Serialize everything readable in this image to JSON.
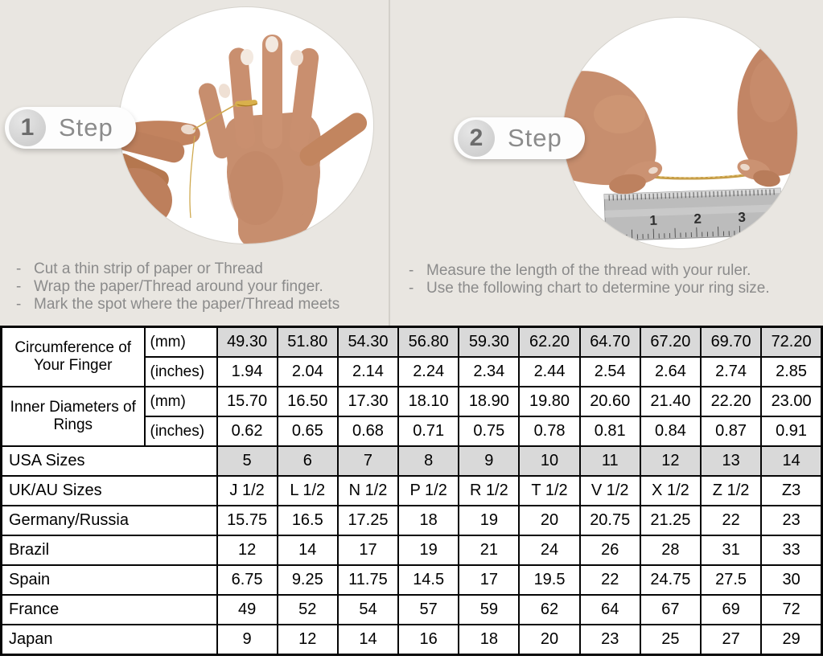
{
  "steps": [
    {
      "number": "1",
      "label": "Step",
      "bullet": "-",
      "instructions": [
        "Cut a thin strip of paper or Thread",
        "Wrap the paper/Thread around your finger.",
        "Mark the spot where the paper/Thread meets"
      ]
    },
    {
      "number": "2",
      "label": "Step",
      "bullet": "-",
      "instructions": [
        "Measure the length of the thread with your ruler.",
        "Use the following chart to determine your ring size."
      ]
    }
  ],
  "photos": {
    "left_photo": "hand-with-thread-around-finger",
    "right_photo": "hands-measuring-thread-with-ruler",
    "ruler_numbers": [
      "1",
      "2",
      "3"
    ]
  },
  "colors": {
    "top_background": "#e9e6e1",
    "shaded_cell": "#d9d9d9",
    "table_border": "#050505",
    "instruction_text": "#8b8b8b",
    "thread_gold": "#c59c46",
    "skin_tone": "#c78e6e"
  },
  "table": {
    "rows": [
      {
        "group_label": "Circumference of Your Finger",
        "group_rowspan": 2,
        "unit": "(mm)",
        "shaded": true,
        "values": [
          "49.30",
          "51.80",
          "54.30",
          "56.80",
          "59.30",
          "62.20",
          "64.70",
          "67.20",
          "69.70",
          "72.20"
        ]
      },
      {
        "unit": "(inches)",
        "shaded": false,
        "values": [
          "1.94",
          "2.04",
          "2.14",
          "2.24",
          "2.34",
          "2.44",
          "2.54",
          "2.64",
          "2.74",
          "2.85"
        ]
      },
      {
        "group_label": "Inner Diameters of Rings",
        "group_rowspan": 2,
        "unit": "(mm)",
        "shaded": false,
        "values": [
          "15.70",
          "16.50",
          "17.30",
          "18.10",
          "18.90",
          "19.80",
          "20.60",
          "21.40",
          "22.20",
          "23.00"
        ]
      },
      {
        "unit": "(inches)",
        "shaded": false,
        "values": [
          "0.62",
          "0.65",
          "0.68",
          "0.71",
          "0.75",
          "0.78",
          "0.81",
          "0.84",
          "0.87",
          "0.91"
        ]
      },
      {
        "label": "USA Sizes",
        "shaded": true,
        "values": [
          "5",
          "6",
          "7",
          "8",
          "9",
          "10",
          "11",
          "12",
          "13",
          "14"
        ]
      },
      {
        "label": "UK/AU Sizes",
        "shaded": false,
        "values": [
          "J 1/2",
          "L 1/2",
          "N 1/2",
          "P 1/2",
          "R 1/2",
          "T 1/2",
          "V 1/2",
          "X 1/2",
          "Z 1/2",
          "Z3"
        ]
      },
      {
        "label": "Germany/Russia",
        "shaded": false,
        "values": [
          "15.75",
          "16.5",
          "17.25",
          "18",
          "19",
          "20",
          "20.75",
          "21.25",
          "22",
          "23"
        ]
      },
      {
        "label": "Brazil",
        "shaded": false,
        "values": [
          "12",
          "14",
          "17",
          "19",
          "21",
          "24",
          "26",
          "28",
          "31",
          "33"
        ]
      },
      {
        "label": "Spain",
        "shaded": false,
        "values": [
          "6.75",
          "9.25",
          "11.75",
          "14.5",
          "17",
          "19.5",
          "22",
          "24.75",
          "27.5",
          "30"
        ]
      },
      {
        "label": "France",
        "shaded": false,
        "values": [
          "49",
          "52",
          "54",
          "57",
          "59",
          "62",
          "64",
          "67",
          "69",
          "72"
        ]
      },
      {
        "label": "Japan",
        "shaded": false,
        "values": [
          "9",
          "12",
          "14",
          "16",
          "18",
          "20",
          "23",
          "25",
          "27",
          "29"
        ]
      }
    ]
  }
}
